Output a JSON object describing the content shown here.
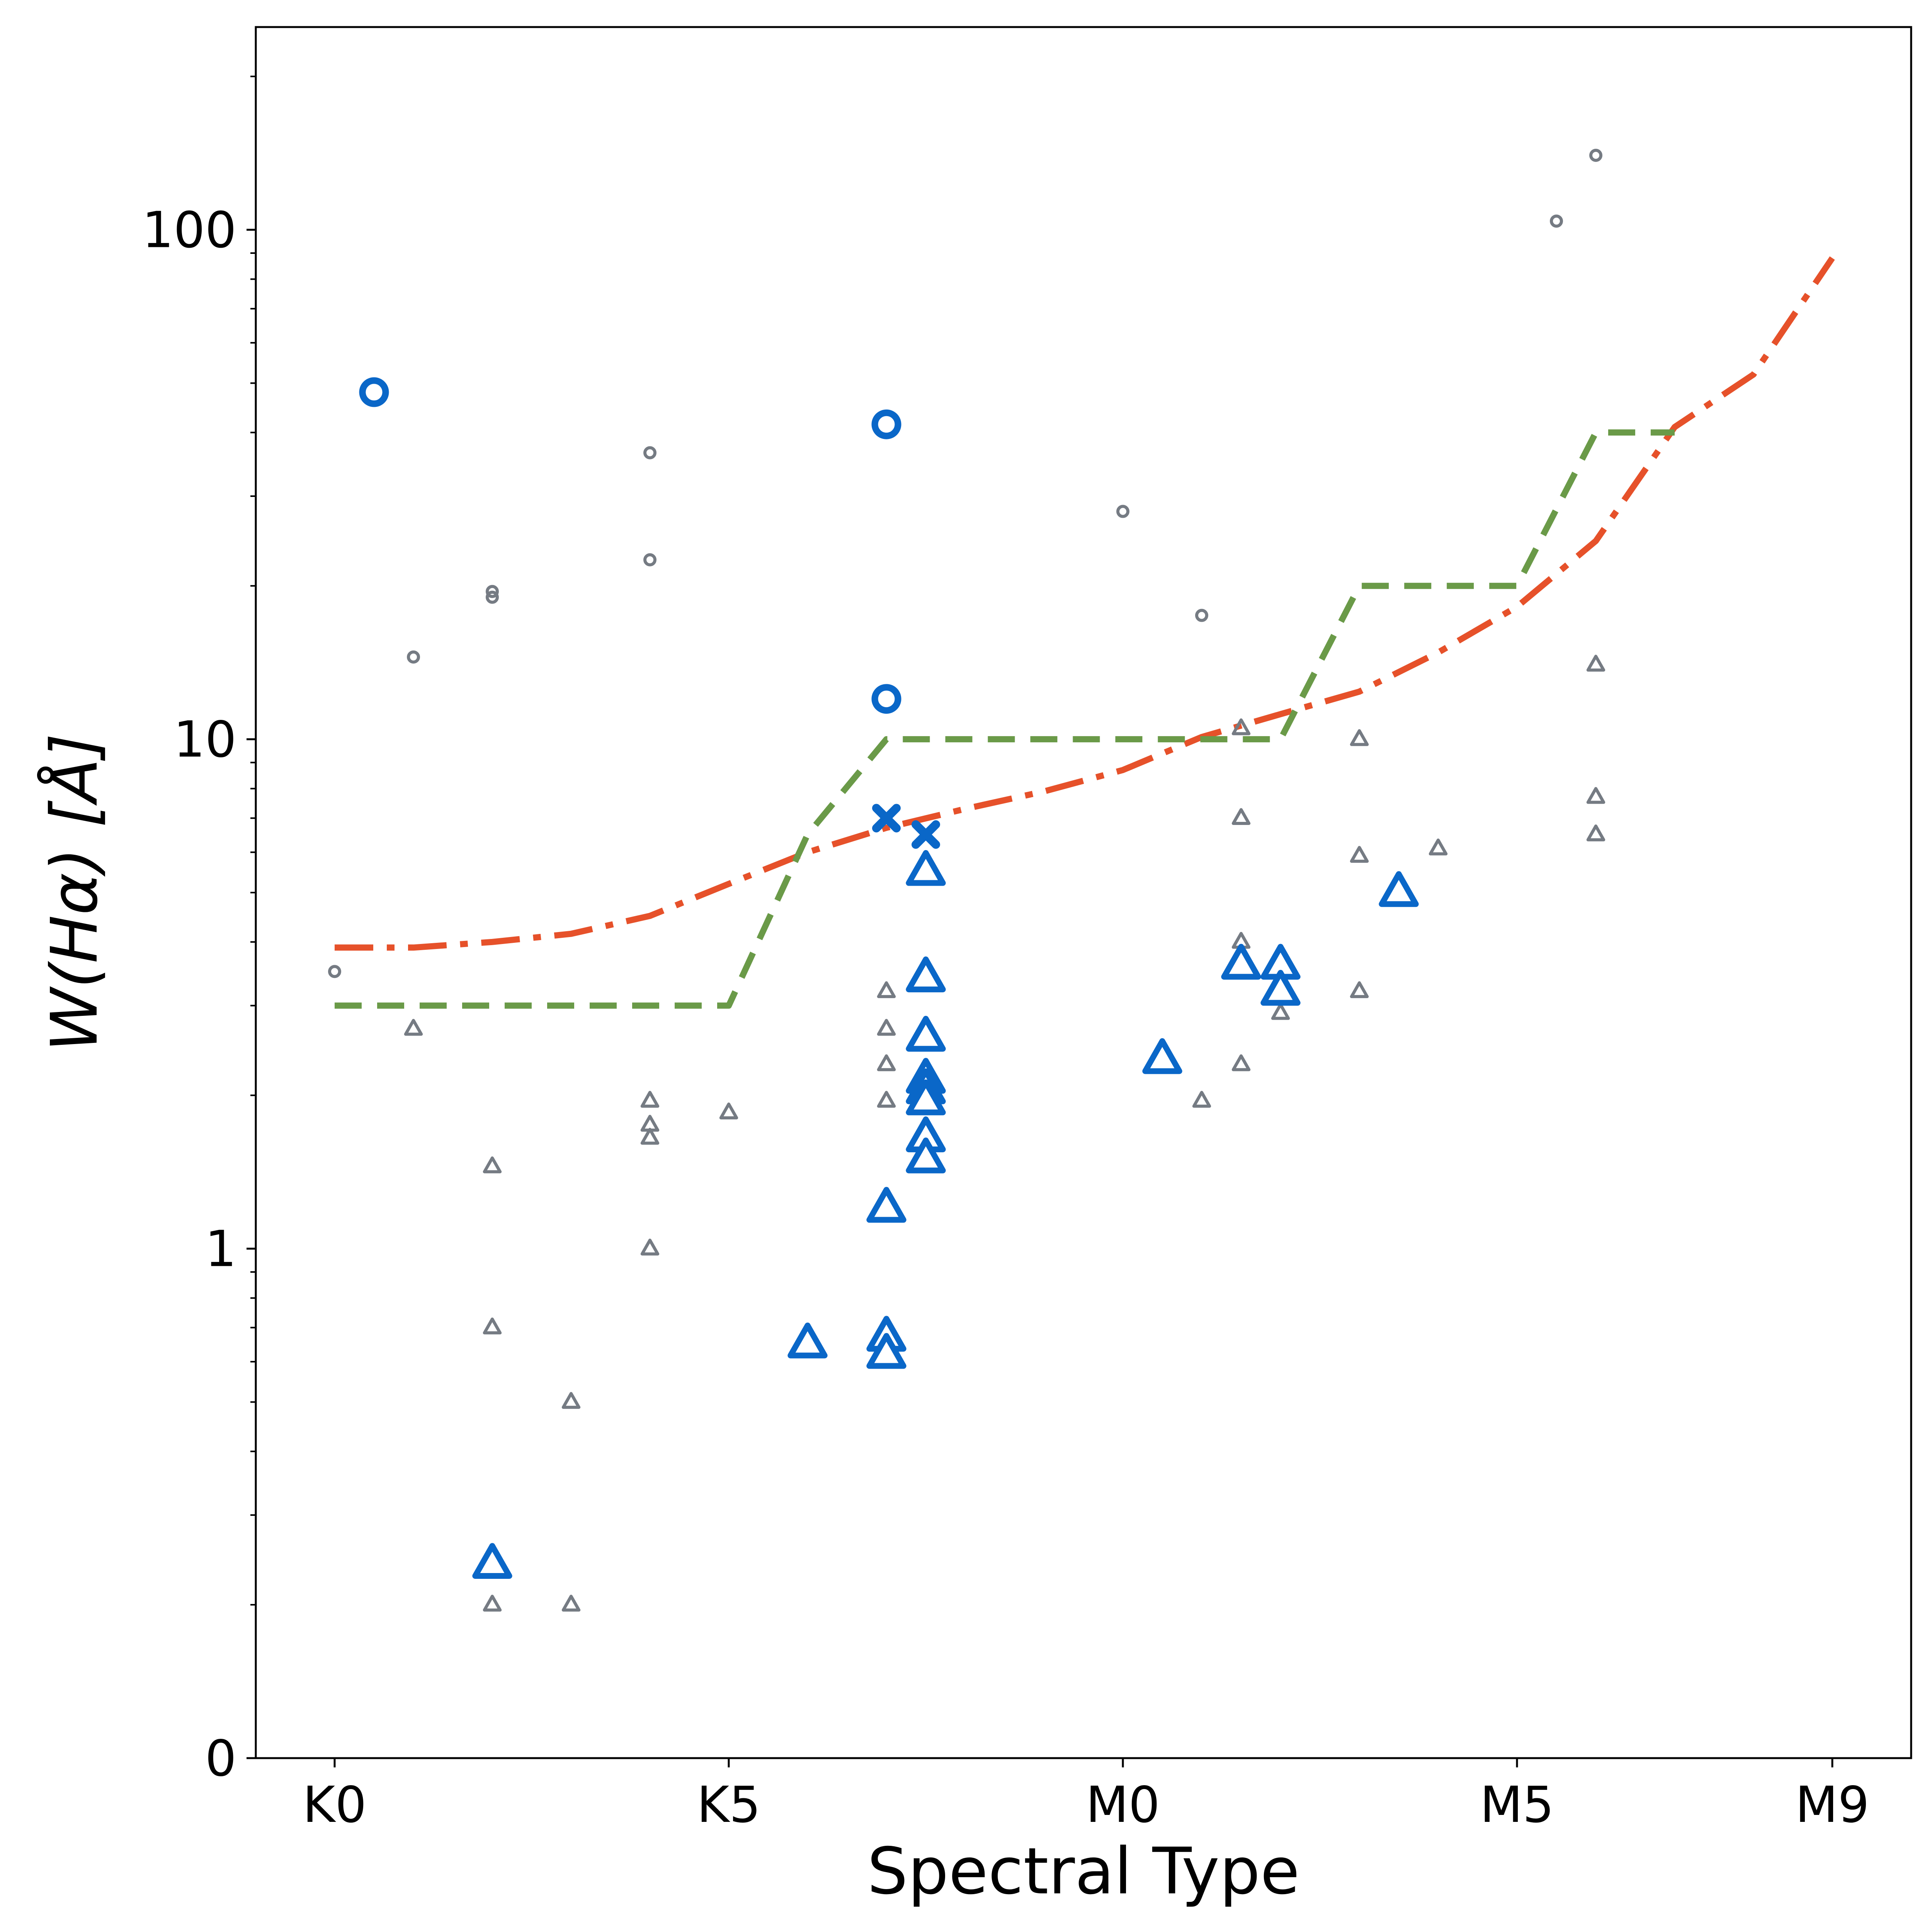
{
  "chart_data": {
    "type": "scatter",
    "title": "",
    "xlabel": "Spectral Type",
    "ylabel": "W(Hα) [Å]",
    "x_ticks": [
      {
        "label": "K0",
        "value": 0
      },
      {
        "label": "K5",
        "value": 5
      },
      {
        "label": "M0",
        "value": 10
      },
      {
        "label": "M5",
        "value": 15
      },
      {
        "label": "M9",
        "value": 19
      }
    ],
    "y_ticks": [
      {
        "label": "0",
        "value": 0.1
      },
      {
        "label": "1",
        "value": 1
      },
      {
        "label": "10",
        "value": 10
      },
      {
        "label": "100",
        "value": 100
      }
    ],
    "xlim": [
      -1,
      20
    ],
    "ylim": [
      0.1,
      250
    ],
    "yscale": "log",
    "colors": {
      "gray": "#757b83",
      "blue": "#0a67c8",
      "red_line": "#e6512a",
      "green_line": "#6a9a48"
    },
    "lines": [
      {
        "name": "red-dashdot",
        "style": "dashdot",
        "x": [
          0,
          1,
          2,
          3,
          4,
          5,
          6,
          7,
          8,
          9,
          10,
          11,
          12,
          13,
          14,
          15,
          16,
          17,
          18,
          19
        ],
        "y": [
          3.9,
          3.9,
          4.0,
          4.15,
          4.5,
          5.2,
          6.0,
          6.7,
          7.3,
          7.9,
          8.7,
          10.1,
          11.2,
          12.4,
          14.8,
          18.2,
          24.5,
          41.0,
          52.0,
          88.0
        ]
      },
      {
        "name": "green-dashed",
        "style": "dashed",
        "x": [
          0,
          5,
          6,
          7,
          12,
          13,
          15,
          16,
          17
        ],
        "y": [
          3.0,
          3.0,
          6.5,
          10.0,
          10.0,
          20.0,
          20.0,
          40.0,
          40.0
        ]
      }
    ],
    "series": [
      {
        "name": "gray-circles",
        "marker": "circle",
        "points": [
          [
            0,
            3.5
          ],
          [
            1,
            14.5
          ],
          [
            2,
            19.0
          ],
          [
            2,
            19.5
          ],
          [
            4,
            22.5
          ],
          [
            4,
            36.5
          ],
          [
            10,
            28.0
          ],
          [
            11,
            17.5
          ],
          [
            15.5,
            104.0
          ],
          [
            16,
            140.0
          ]
        ]
      },
      {
        "name": "gray-triangles",
        "marker": "triangle",
        "points": [
          [
            1,
            2.7
          ],
          [
            2,
            1.45
          ],
          [
            2,
            0.7
          ],
          [
            2,
            0.2
          ],
          [
            3,
            0.5
          ],
          [
            3,
            0.2
          ],
          [
            4,
            1.95
          ],
          [
            4,
            1.75
          ],
          [
            4,
            1.65
          ],
          [
            4,
            1.0
          ],
          [
            5,
            1.85
          ],
          [
            7,
            3.2
          ],
          [
            7,
            2.7
          ],
          [
            7,
            2.3
          ],
          [
            7,
            1.95
          ],
          [
            11,
            1.95
          ],
          [
            11.5,
            10.5
          ],
          [
            11.5,
            7.0
          ],
          [
            11.5,
            4.0
          ],
          [
            11.5,
            3.5
          ],
          [
            11.5,
            2.3
          ],
          [
            12,
            2.9
          ],
          [
            13,
            10.0
          ],
          [
            13,
            5.9
          ],
          [
            13,
            3.2
          ],
          [
            14,
            6.1
          ],
          [
            16,
            14.0
          ],
          [
            16,
            7.7
          ],
          [
            16,
            6.5
          ]
        ]
      },
      {
        "name": "blue-open-circles",
        "marker": "circle",
        "points": [
          [
            0.5,
            48.0
          ],
          [
            7,
            41.5
          ],
          [
            7,
            12.0
          ]
        ]
      },
      {
        "name": "blue-x",
        "marker": "x",
        "points": [
          [
            7,
            7.0
          ],
          [
            7.5,
            6.5
          ]
        ]
      },
      {
        "name": "blue-triangles",
        "marker": "triangle",
        "points": [
          [
            7.5,
            5.5
          ],
          [
            7.5,
            3.4
          ],
          [
            7.5,
            2.6
          ],
          [
            7.5,
            2.15
          ],
          [
            7.5,
            2.05
          ],
          [
            7.5,
            1.95
          ],
          [
            7.5,
            1.65
          ],
          [
            7.5,
            1.5
          ],
          [
            7,
            1.2
          ],
          [
            7,
            0.67
          ],
          [
            7,
            0.62
          ],
          [
            6,
            0.65
          ],
          [
            2,
            0.24
          ],
          [
            10.5,
            2.35
          ],
          [
            11.5,
            3.6
          ],
          [
            12,
            3.6
          ],
          [
            12,
            3.2
          ],
          [
            13.5,
            5.0
          ]
        ]
      }
    ]
  }
}
